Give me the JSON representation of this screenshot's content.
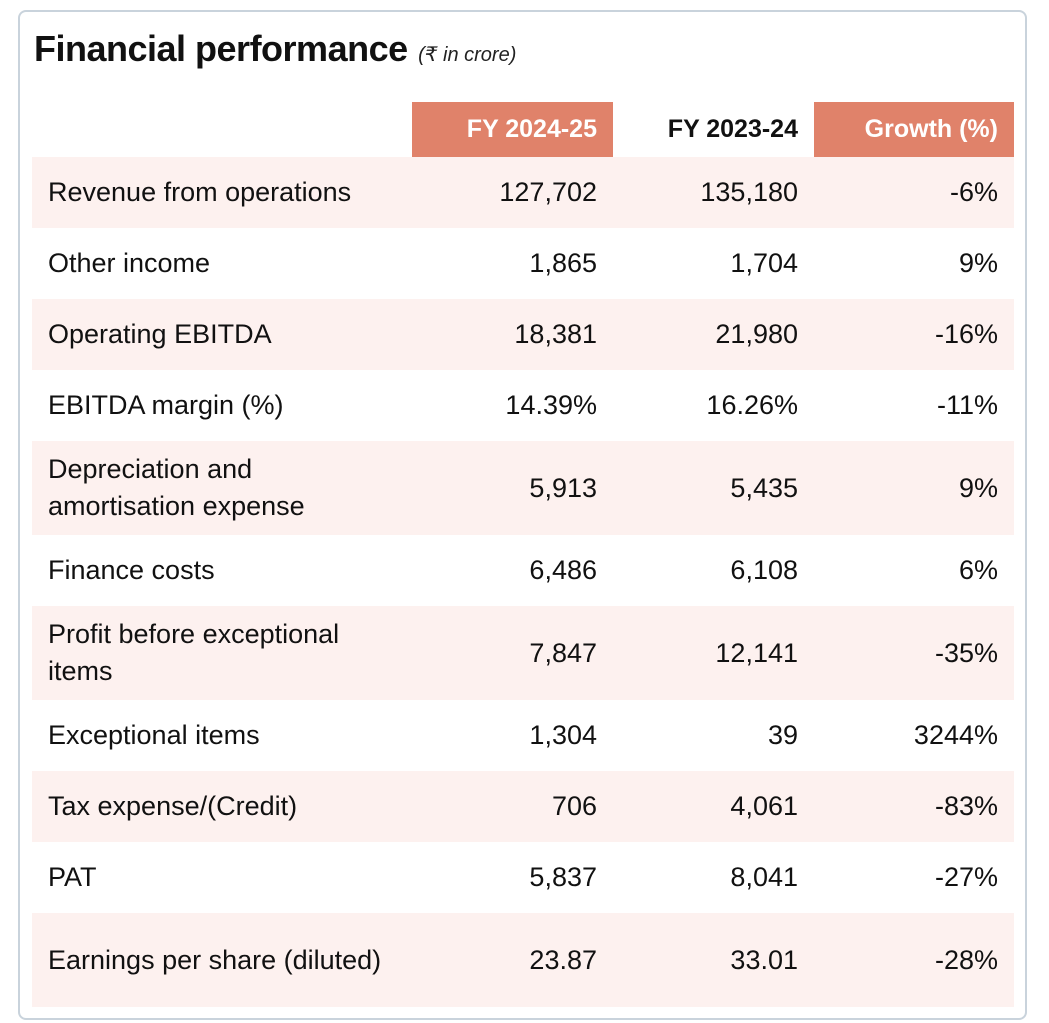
{
  "header": {
    "title": "Financial performance",
    "unit": "(₹ in crore)"
  },
  "table": {
    "columns": {
      "label": "",
      "fy2025": "FY 2024-25",
      "fy2024": "FY 2023-24",
      "growth": "Growth (%)"
    },
    "rows": [
      {
        "label": "Revenue from operations",
        "fy2025": "127,702",
        "fy2024": "135,180",
        "growth": "-6%"
      },
      {
        "label": "Other income",
        "fy2025": "1,865",
        "fy2024": "1,704",
        "growth": "9%"
      },
      {
        "label": "Operating EBITDA",
        "fy2025": "18,381",
        "fy2024": "21,980",
        "growth": "-16%"
      },
      {
        "label": "EBITDA margin (%)",
        "fy2025": "14.39%",
        "fy2024": "16.26%",
        "growth": "-11%"
      },
      {
        "label": "Depreciation and amortisation expense",
        "fy2025": "5,913",
        "fy2024": "5,435",
        "growth": "9%"
      },
      {
        "label": "Finance costs",
        "fy2025": "6,486",
        "fy2024": "6,108",
        "growth": "6%"
      },
      {
        "label": "Profit before exceptional items",
        "fy2025": "7,847",
        "fy2024": "12,141",
        "growth": "-35%"
      },
      {
        "label": "Exceptional items",
        "fy2025": "1,304",
        "fy2024": "39",
        "growth": "3244%"
      },
      {
        "label": "Tax expense/(Credit)",
        "fy2025": "706",
        "fy2024": "4,061",
        "growth": "-83%"
      },
      {
        "label": "PAT",
        "fy2025": "5,837",
        "fy2024": "8,041",
        "growth": "-27%"
      },
      {
        "label": "Earnings per share (diluted)",
        "fy2025": "23.87",
        "fy2024": "33.01",
        "growth": "-28%"
      }
    ]
  },
  "colors": {
    "header_highlight": "#e0826a",
    "row_shade": "#fdf1ef",
    "border": "#c9d3dc"
  }
}
